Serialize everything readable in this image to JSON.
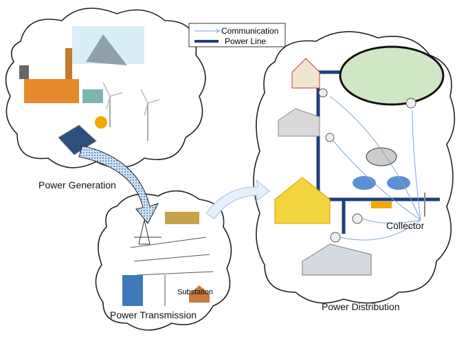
{
  "legend": {
    "communication": "Communication",
    "power_line": "Power Line"
  },
  "sections": {
    "generation": "Power Generation",
    "transmission": "Power Transmission",
    "distribution": "Power Distribution"
  },
  "labels": {
    "collector": "Collector",
    "substation": "Substation"
  }
}
